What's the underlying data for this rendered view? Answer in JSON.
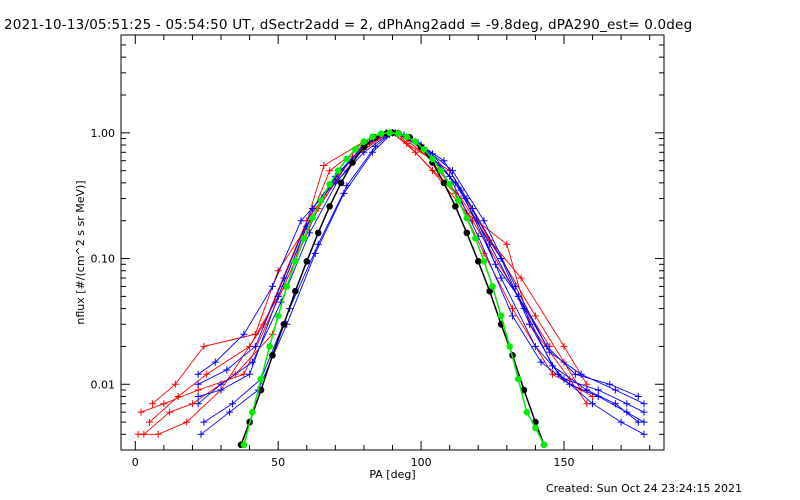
{
  "title": "2021-10-13/05:51:25 - 05:54:50 UT, dSectr2add = 2, dPhAng2add = -9.8deg, dPA290_est=  0.0deg",
  "created": "Created: Sun Oct 24 23:24:15 2021",
  "chart_data": {
    "type": "line",
    "xlabel": "PA [deg]",
    "ylabel": "nflux [#/(cm^2 s sr MeV)]",
    "xlim": [
      -5,
      185
    ],
    "ylim": [
      0.003,
      6
    ],
    "yscale": "log",
    "grid": false,
    "x_ticks": [
      0,
      50,
      100,
      150
    ],
    "x_tick_labels": [
      "0",
      "50",
      "100",
      "150"
    ],
    "y_ticks": [
      0.01,
      0.1,
      1.0
    ],
    "y_tick_labels": [
      "0.01",
      "0.10",
      "1.00"
    ],
    "colors": {
      "red": "#ff0000",
      "blue": "#0000ff",
      "green": "#00ee00",
      "black": "#000000"
    },
    "series": [
      {
        "color": "red",
        "marker": "plus",
        "x": [
          2,
          10,
          22,
          38,
          52,
          66,
          78,
          88,
          90,
          98,
          112,
          122,
          132,
          146,
          160
        ],
        "y": [
          0.006,
          0.007,
          0.009,
          0.012,
          0.06,
          0.32,
          0.72,
          0.98,
          1.0,
          0.7,
          0.33,
          0.11,
          0.04,
          0.012,
          0.008
        ]
      },
      {
        "color": "red",
        "marker": "plus",
        "x": [
          5,
          15,
          25,
          40,
          50,
          68,
          80,
          88,
          90,
          95,
          110,
          124,
          135,
          150,
          158
        ],
        "y": [
          0.005,
          0.008,
          0.012,
          0.02,
          0.05,
          0.5,
          0.8,
          1.0,
          1.0,
          0.82,
          0.5,
          0.14,
          0.07,
          0.02,
          0.01
        ]
      },
      {
        "color": "red",
        "marker": "plus",
        "x": [
          1,
          8,
          18,
          30,
          45,
          60,
          75,
          87,
          92,
          100,
          114,
          128,
          140,
          150,
          156
        ],
        "y": [
          0.004,
          0.004,
          0.005,
          0.009,
          0.03,
          0.2,
          0.6,
          0.95,
          1.0,
          0.75,
          0.3,
          0.1,
          0.035,
          0.015,
          0.009
        ]
      },
      {
        "color": "red",
        "marker": "plus",
        "x": [
          3,
          12,
          20,
          35,
          48,
          66,
          80,
          88,
          92,
          104,
          116,
          130,
          138,
          152,
          158
        ],
        "y": [
          0.004,
          0.006,
          0.007,
          0.012,
          0.025,
          0.55,
          0.85,
          1.0,
          0.98,
          0.5,
          0.23,
          0.13,
          0.03,
          0.011,
          0.007
        ]
      },
      {
        "color": "red",
        "marker": "plus",
        "x": [
          6,
          14,
          24,
          42,
          50,
          64,
          76,
          89,
          93,
          106,
          118,
          134,
          145
        ],
        "y": [
          0.007,
          0.01,
          0.02,
          0.025,
          0.08,
          0.25,
          0.65,
          1.0,
          0.95,
          0.55,
          0.2,
          0.05,
          0.02
        ]
      },
      {
        "color": "blue",
        "marker": "plus",
        "x": [
          22,
          30,
          40,
          50,
          60,
          70,
          80,
          88,
          90,
          96,
          110,
          120,
          132,
          142,
          152,
          162,
          172,
          178
        ],
        "y": [
          0.008,
          0.009,
          0.012,
          0.05,
          0.18,
          0.45,
          0.8,
          0.98,
          1.0,
          0.92,
          0.45,
          0.15,
          0.035,
          0.015,
          0.01,
          0.008,
          0.006,
          0.005
        ]
      },
      {
        "color": "blue",
        "marker": "plus",
        "x": [
          22,
          32,
          42,
          52,
          62,
          72,
          82,
          89,
          91,
          98,
          108,
          118,
          128,
          140,
          150,
          162,
          172,
          178
        ],
        "y": [
          0.01,
          0.013,
          0.02,
          0.07,
          0.25,
          0.5,
          0.85,
          1.0,
          1.0,
          0.85,
          0.6,
          0.25,
          0.07,
          0.02,
          0.011,
          0.009,
          0.007,
          0.006
        ]
      },
      {
        "color": "blue",
        "marker": "plus",
        "x": [
          24,
          34,
          44,
          54,
          64,
          74,
          84,
          89,
          92,
          100,
          112,
          124,
          136,
          146,
          158,
          168,
          176
        ],
        "y": [
          0.005,
          0.007,
          0.011,
          0.04,
          0.13,
          0.38,
          0.78,
          0.97,
          0.99,
          0.8,
          0.4,
          0.13,
          0.04,
          0.014,
          0.009,
          0.007,
          0.005
        ]
      },
      {
        "color": "blue",
        "marker": "plus",
        "x": [
          22,
          28,
          38,
          48,
          58,
          70,
          80,
          88,
          92,
          102,
          114,
          126,
          134,
          144,
          154,
          166,
          176
        ],
        "y": [
          0.012,
          0.015,
          0.025,
          0.06,
          0.2,
          0.4,
          0.7,
          0.95,
          0.98,
          0.72,
          0.35,
          0.09,
          0.05,
          0.02,
          0.012,
          0.01,
          0.008
        ]
      },
      {
        "color": "blue",
        "marker": "plus",
        "x": [
          23,
          33,
          43,
          53,
          63,
          73,
          83,
          90,
          94,
          104,
          116,
          128,
          138,
          148,
          160,
          170,
          178
        ],
        "y": [
          0.004,
          0.006,
          0.009,
          0.03,
          0.11,
          0.33,
          0.7,
          1.0,
          0.96,
          0.68,
          0.3,
          0.1,
          0.03,
          0.012,
          0.007,
          0.005,
          0.004
        ]
      },
      {
        "color": "blue",
        "marker": "plus",
        "x": [
          22,
          30,
          41,
          51,
          61,
          71,
          81,
          88,
          91,
          99,
          111,
          122,
          133,
          145,
          156,
          168,
          178
        ],
        "y": [
          0.007,
          0.01,
          0.015,
          0.045,
          0.16,
          0.42,
          0.82,
          0.99,
          1.0,
          0.83,
          0.5,
          0.2,
          0.06,
          0.018,
          0.012,
          0.009,
          0.007
        ]
      }
    ],
    "fits": [
      {
        "color": "black",
        "marker": "dot",
        "x": [
          37,
          40,
          44,
          48,
          52,
          56,
          60,
          64,
          68,
          72,
          76,
          80,
          84,
          88,
          90,
          92,
          96,
          100,
          104,
          108,
          112,
          116,
          120,
          124,
          128,
          132,
          136,
          140,
          143
        ],
        "y": [
          0.0033,
          0.005,
          0.009,
          0.017,
          0.03,
          0.055,
          0.095,
          0.16,
          0.26,
          0.4,
          0.58,
          0.77,
          0.92,
          0.99,
          1.0,
          0.99,
          0.92,
          0.77,
          0.58,
          0.4,
          0.26,
          0.16,
          0.095,
          0.055,
          0.03,
          0.017,
          0.009,
          0.005,
          0.0033
        ]
      },
      {
        "color": "green",
        "marker": "dot",
        "x": [
          38,
          41,
          44,
          47,
          50,
          53,
          56,
          59,
          62,
          65,
          68,
          71,
          74,
          77,
          80,
          83,
          86,
          89,
          92,
          95,
          98,
          101,
          104,
          107,
          110,
          113,
          116,
          119,
          122,
          125,
          128,
          131,
          134,
          137,
          140,
          143
        ],
        "y": [
          0.0033,
          0.006,
          0.011,
          0.02,
          0.035,
          0.06,
          0.095,
          0.145,
          0.21,
          0.29,
          0.39,
          0.5,
          0.62,
          0.74,
          0.85,
          0.93,
          0.985,
          1.0,
          0.985,
          0.93,
          0.85,
          0.74,
          0.62,
          0.5,
          0.39,
          0.29,
          0.21,
          0.145,
          0.095,
          0.06,
          0.035,
          0.02,
          0.011,
          0.006,
          0.0045,
          0.0033
        ]
      }
    ]
  }
}
